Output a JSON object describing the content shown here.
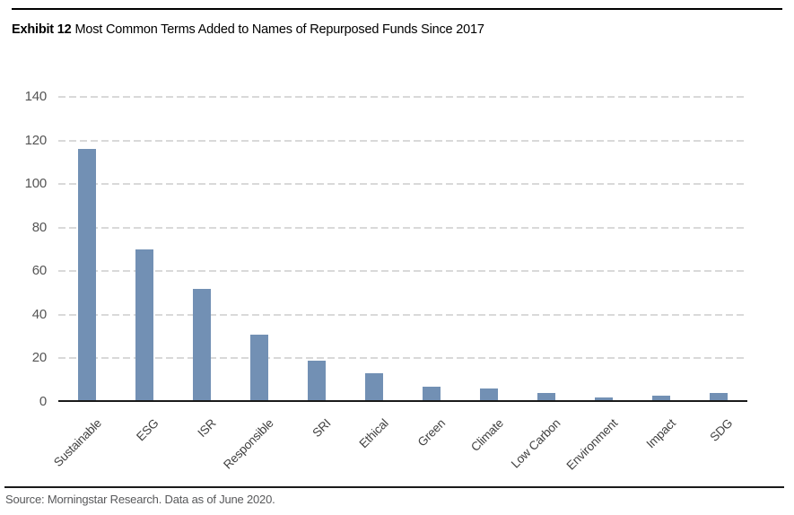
{
  "header": {
    "exhibit_label": "Exhibit 12",
    "title": "Most Common Terms Added to Names of Repurposed Funds Since 2017"
  },
  "source_note": "Source: Morningstar Research. Data as of June 2020.",
  "colors": {
    "bar": "#7290b4",
    "gridline": "#d9d9d9",
    "axis_line": "#1a1a1a",
    "tick_label": "#555555",
    "category_label": "#404040",
    "source_text": "#58595b",
    "title_text": "#000000"
  },
  "chart_data": {
    "type": "bar",
    "title": "Exhibit 12 Most Common Terms Added to Names of Repurposed Funds Since 2017",
    "categories": [
      "Sustainable",
      "ESG",
      "ISR",
      "Responsible",
      "SRI",
      "Ethical",
      "Green",
      "Climate",
      "Low Carbon",
      "Environment",
      "Impact",
      "SDG"
    ],
    "values": [
      116,
      70,
      52,
      31,
      19,
      13,
      7,
      6,
      4,
      2,
      3,
      4
    ],
    "xlabel": "",
    "ylabel": "",
    "ylim": [
      0,
      140
    ],
    "yticks": [
      0,
      20,
      40,
      60,
      80,
      100,
      120,
      140
    ],
    "grid": "horizontal-dashed",
    "legend_position": "none",
    "bar_color": "#7290b4",
    "source": "Source: Morningstar Research. Data as of June 2020."
  }
}
